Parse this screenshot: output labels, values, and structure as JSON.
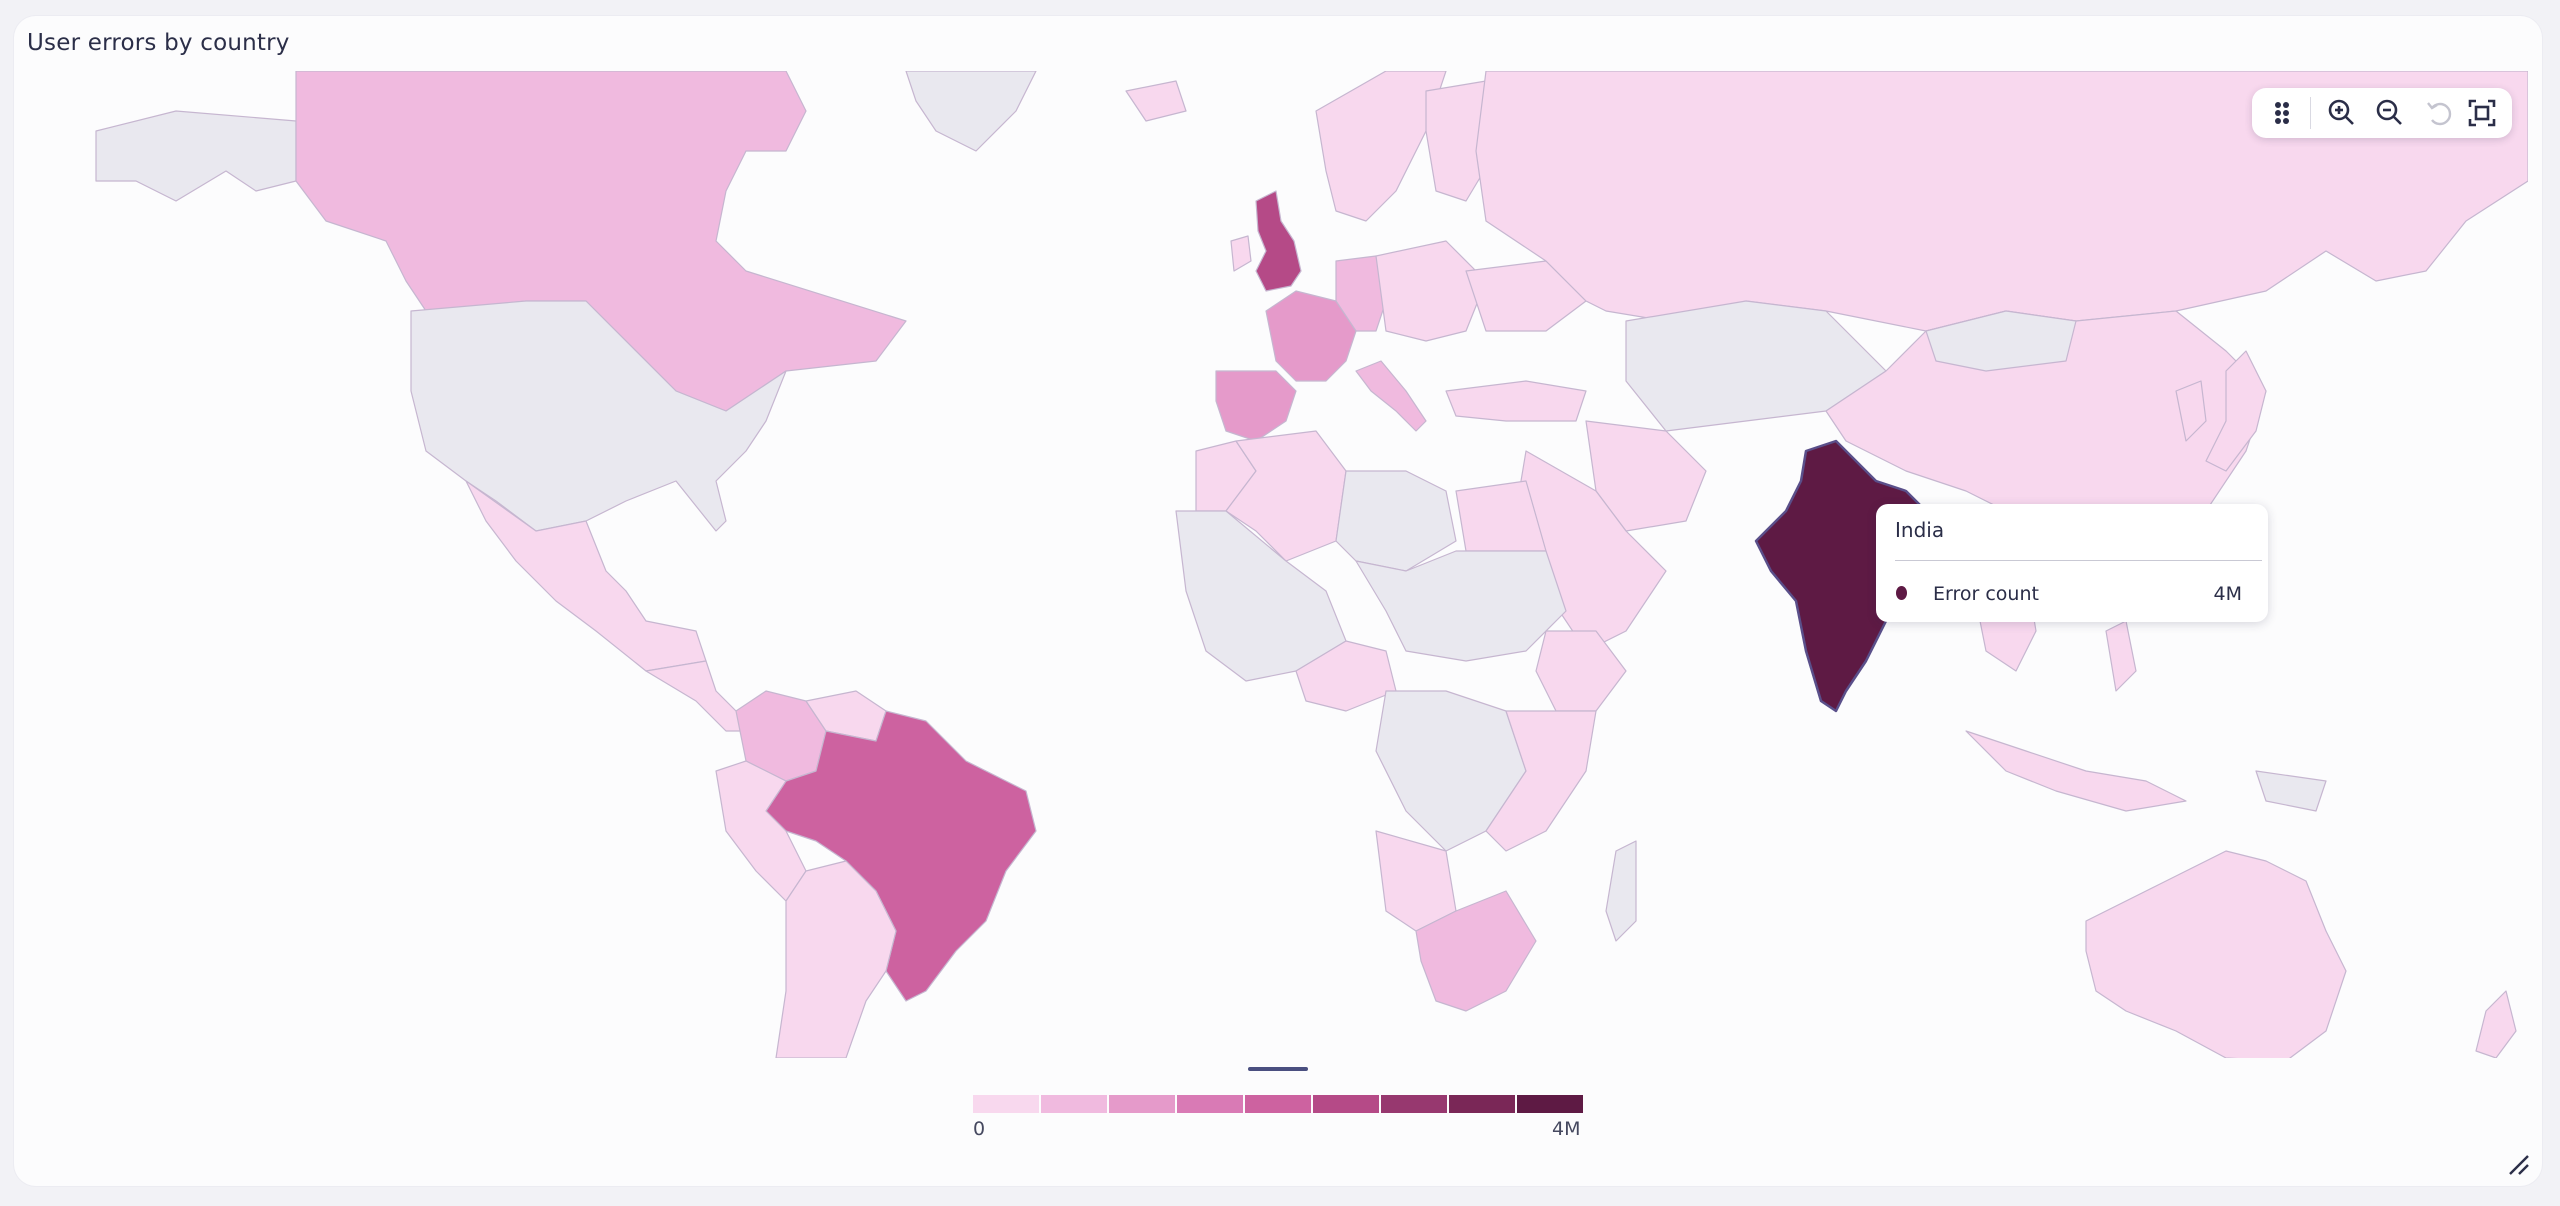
{
  "panel": {
    "title": "User errors by country"
  },
  "chart_data": {
    "type": "heatmap",
    "subtype": "choropleth-world-map",
    "title": "User errors by country",
    "metric": "Error count",
    "scale": {
      "min_label": "0",
      "max_label": "4M",
      "min": 0,
      "max": 4000000,
      "steps": 9
    },
    "colors": [
      "#f8d8ee",
      "#f0badf",
      "#e59aca",
      "#d97ab5",
      "#cd62a0",
      "#b54a87",
      "#97386f",
      "#7a2757",
      "#5e1a44"
    ],
    "no_data_color": "#e9e8ef",
    "countries": [
      {
        "name": "India",
        "level": 9
      },
      {
        "name": "United Kingdom",
        "level": 6
      },
      {
        "name": "Brazil",
        "level": 5
      },
      {
        "name": "France",
        "level": 3
      },
      {
        "name": "Spain",
        "level": 3
      },
      {
        "name": "Germany",
        "level": 2
      },
      {
        "name": "Canada",
        "level": 2
      },
      {
        "name": "Colombia",
        "level": 2
      },
      {
        "name": "South Africa",
        "level": 2
      },
      {
        "name": "Italy",
        "level": 2
      },
      {
        "name": "Russia",
        "level": 1
      },
      {
        "name": "China",
        "level": 1
      },
      {
        "name": "Australia",
        "level": 1
      },
      {
        "name": "Mexico",
        "level": 1
      }
    ]
  },
  "tooltip": {
    "country": "India",
    "metric_label": "Error count",
    "value": "4M"
  },
  "toolbar": {
    "icons": [
      "drag-handle-icon",
      "zoom-in-icon",
      "zoom-out-icon",
      "reset-zoom-icon",
      "fit-to-screen-icon"
    ]
  },
  "legend": {
    "min_label": "0",
    "max_label": "4M"
  }
}
